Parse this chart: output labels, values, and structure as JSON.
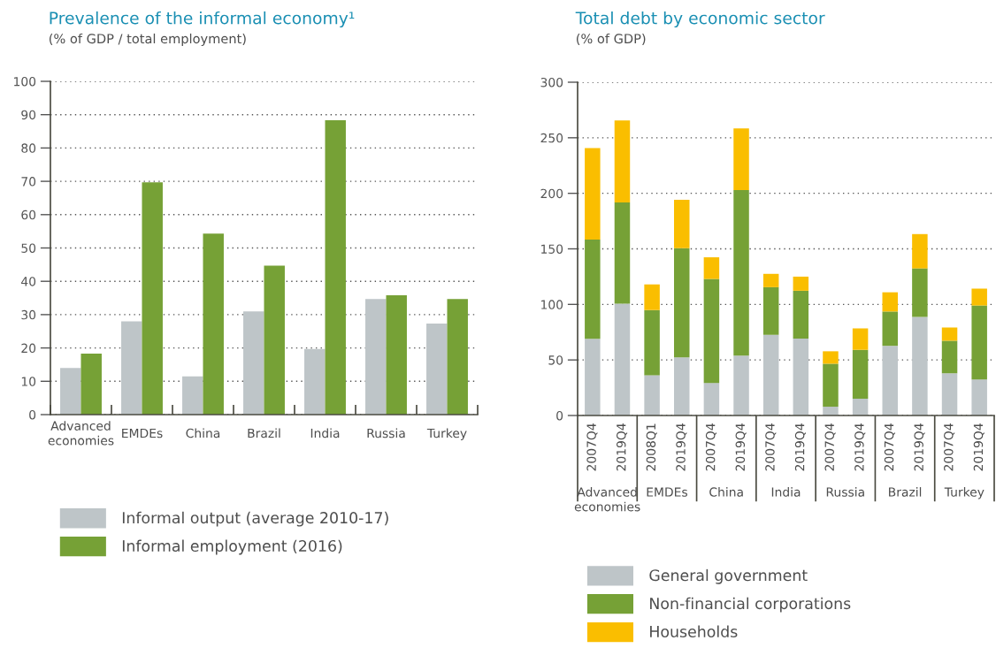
{
  "chart_data": [
    {
      "type": "bar",
      "title": "Prevalence of the informal economy¹",
      "subtitle": "(% of GDP / total employment)",
      "categories": [
        "Advanced\neconomies",
        "EMDEs",
        "China",
        "Brazil",
        "India",
        "Russia",
        "Turkey"
      ],
      "series": [
        {
          "name": "Informal output (average 2010-17)",
          "color": "#bec5c8",
          "values": [
            14,
            28,
            11.5,
            31,
            19.7,
            34.7,
            27.3
          ]
        },
        {
          "name": "Informal employment (2016)",
          "color": "#76a136",
          "values": [
            18.3,
            69.7,
            54.3,
            44.7,
            88.3,
            35.8,
            34.7
          ]
        }
      ],
      "ylim": [
        0,
        100
      ],
      "yticks": [
        0,
        10,
        20,
        30,
        40,
        50,
        60,
        70,
        80,
        90,
        100
      ],
      "grid": "y",
      "legend": "bottom"
    },
    {
      "type": "bar",
      "title": "Total debt by economic sector",
      "subtitle": "(% of GDP)",
      "stacked": true,
      "categories": [
        "2007Q4",
        "2019Q4",
        "2008Q1",
        "2019Q4",
        "2007Q4",
        "2019Q4",
        "2007Q4",
        "2019Q4",
        "2007Q4",
        "2019Q4",
        "2007Q4",
        "2019Q4",
        "2007Q4",
        "2019Q4"
      ],
      "series": [
        {
          "name": "General government",
          "color": "#bec5c8",
          "values": [
            69,
            100.6,
            36.3,
            52.3,
            29.3,
            54,
            72.7,
            69.2,
            7.9,
            15.2,
            62.7,
            88.7,
            38,
            32.5
          ]
        },
        {
          "name": "Non-financial corporations",
          "color": "#76a136",
          "values": [
            89.4,
            91.2,
            58.6,
            98.2,
            93.6,
            148.9,
            42.8,
            43.1,
            38.7,
            43.9,
            30.9,
            43.7,
            29.3,
            66.5
          ]
        },
        {
          "name": "Households",
          "color": "#fabe00",
          "values": [
            82.4,
            73.7,
            23.1,
            43.7,
            19.5,
            55.6,
            12,
            12.7,
            11.2,
            19.3,
            17.3,
            30.9,
            11.9,
            15.2
          ]
        }
      ],
      "annotations": [
        "Advanced\neconomies",
        "EMDEs",
        "China",
        "India",
        "Russia",
        "Brazil",
        "Turkey"
      ],
      "ylim": [
        0,
        300
      ],
      "yticks": [
        0,
        50,
        100,
        150,
        200,
        250,
        300
      ],
      "grid": "y",
      "legend": "bottom"
    }
  ]
}
